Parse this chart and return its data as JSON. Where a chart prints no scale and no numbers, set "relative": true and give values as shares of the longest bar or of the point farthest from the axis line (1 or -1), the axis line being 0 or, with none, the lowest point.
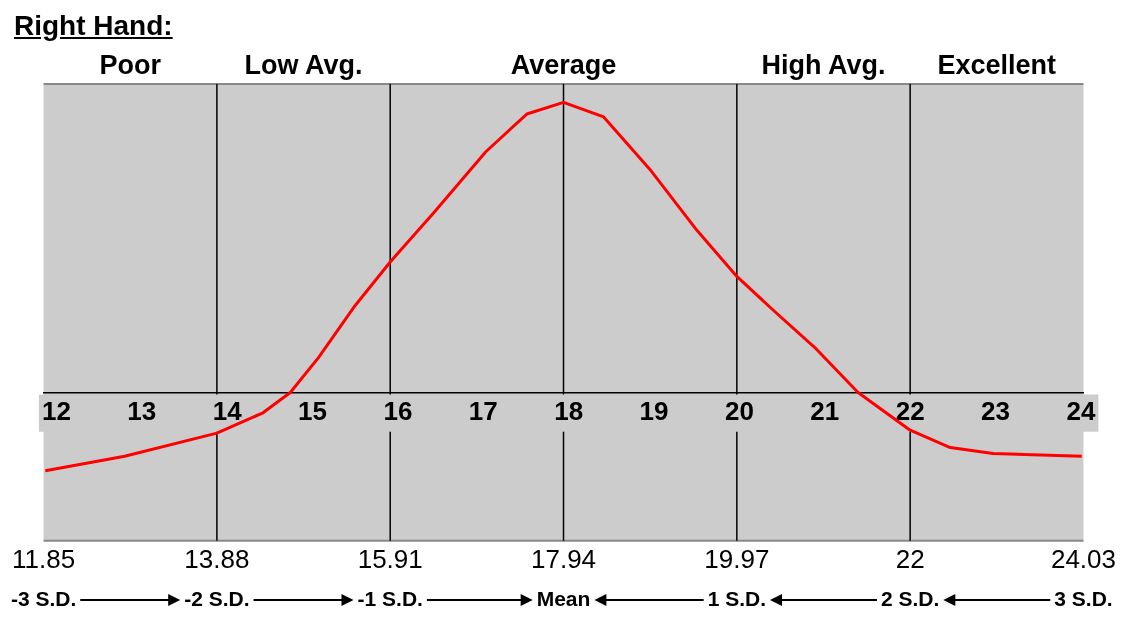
{
  "chart_data": {
    "type": "line",
    "title": "Right Hand:",
    "relative": true,
    "grid": false,
    "marker": "none",
    "line_style": "solid",
    "x": [
      11.87,
      12.8,
      13.88,
      14.42,
      14.74,
      15.07,
      15.5,
      15.91,
      16.42,
      17.03,
      17.51,
      17.94,
      18.41,
      18.95,
      19.5,
      19.97,
      20.41,
      20.9,
      21.39,
      22.0,
      22.47,
      22.97,
      24.01
    ],
    "series": [
      {
        "color": "#ff0000",
        "values": [
          -0.27,
          -0.22,
          -0.14,
          -0.07,
          0,
          0.12,
          0.3,
          0.45,
          0.62,
          0.83,
          0.96,
          1,
          0.95,
          0.77,
          0.56,
          0.4,
          0.28,
          0.15,
          0,
          -0.13,
          -0.19,
          -0.21,
          -0.22
        ]
      }
    ],
    "xlim": [
      11.85,
      24.03
    ],
    "xticks": [
      12,
      13,
      14,
      15,
      16,
      17,
      18,
      19,
      20,
      21,
      22,
      23,
      24
    ],
    "x2lim": [
      11.85,
      24.03
    ],
    "x2ticks": [
      11.85,
      13.88,
      15.91,
      17.94,
      19.97,
      22,
      24.03
    ],
    "bands": [
      {
        "axis": "x",
        "from": 11.85,
        "to": 13.88,
        "label": "Poor",
        "color": "#cccccc"
      },
      {
        "axis": "x",
        "from": 13.88,
        "to": 15.91,
        "label": "Low Avg.",
        "color": "#cccccc"
      },
      {
        "axis": "x",
        "from": 15.91,
        "to": 19.97,
        "label": "Average",
        "color": "#cccccc"
      },
      {
        "axis": "x",
        "from": 19.97,
        "to": 22,
        "label": "High Avg.",
        "color": "#cccccc"
      },
      {
        "axis": "x",
        "from": 22,
        "to": 24.03,
        "label": "Excellent",
        "color": "#cccccc"
      }
    ],
    "ref_lines": [
      {
        "axis": "x",
        "value": 13.88,
        "label": "-2 S.D.",
        "color": "#000000"
      },
      {
        "axis": "x",
        "value": 15.91,
        "label": "-1 S.D.",
        "color": "#000000"
      },
      {
        "axis": "x",
        "value": 17.94,
        "label": "Mean",
        "color": "#000000"
      },
      {
        "axis": "x",
        "value": 19.97,
        "label": "1 S.D.",
        "color": "#000000"
      },
      {
        "axis": "x",
        "value": 22,
        "label": "2 S.D.",
        "color": "#000000"
      }
    ],
    "annotations": [
      "-3 S.D.",
      "3 S.D."
    ]
  }
}
